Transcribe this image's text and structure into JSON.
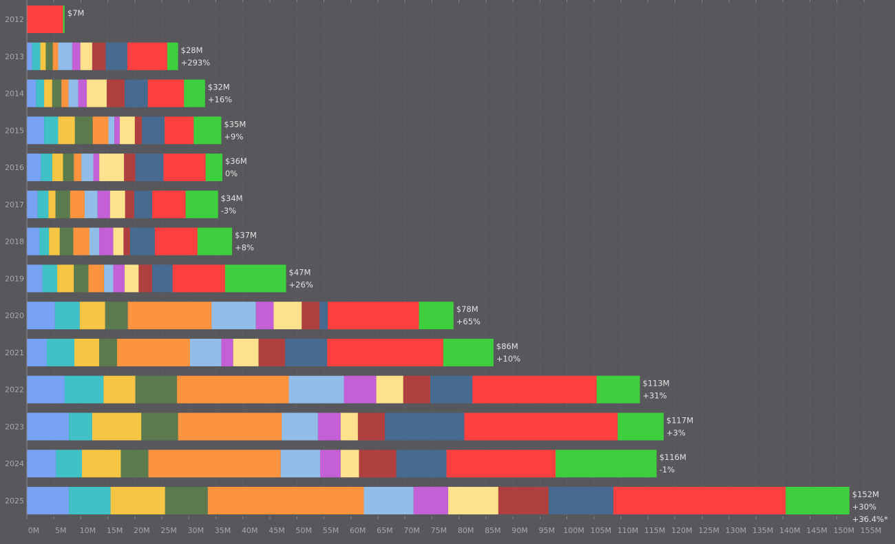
{
  "chart_data": {
    "type": "bar",
    "orientation": "horizontal",
    "stacked": true,
    "grid": true,
    "background": "#58585c",
    "xlim": [
      0,
      155
    ],
    "x_ticks": [
      "0M",
      "5M",
      "10M",
      "15M",
      "20M",
      "25M",
      "30M",
      "35M",
      "40M",
      "45M",
      "50M",
      "55M",
      "60M",
      "65M",
      "70M",
      "75M",
      "80M",
      "85M",
      "90M",
      "95M",
      "100M",
      "105M",
      "110M",
      "115M",
      "120M",
      "125M",
      "130M",
      "135M",
      "140M",
      "145M",
      "150M",
      "155M"
    ],
    "segment_colors": [
      "#78a3f5",
      "#3fc1c6",
      "#f6c544",
      "#5b7b4e",
      "#fc943f",
      "#92bde8",
      "#c460d6",
      "#fde18c",
      "#b04040",
      "#466a90",
      "#fc4040",
      "#3ecf3e"
    ],
    "categories": [
      "2012",
      "2013",
      "2014",
      "2015",
      "2016",
      "2017",
      "2018",
      "2019",
      "2020",
      "2021",
      "2022",
      "2023",
      "2024",
      "2025"
    ],
    "rows": [
      {
        "year": "2012",
        "segments": [
          0,
          0,
          0,
          0,
          0,
          0,
          0,
          0,
          0,
          0,
          6.7,
          0.3
        ],
        "total_label": "$7M",
        "change_label": ""
      },
      {
        "year": "2013",
        "segments": [
          1,
          1.5,
          1,
          1.3,
          1,
          2.6,
          1.5,
          2.2,
          2.5,
          4,
          7.4,
          2
        ],
        "total_label": "$28M",
        "change_label": "+293%"
      },
      {
        "year": "2014",
        "segments": [
          1.7,
          1.5,
          1.5,
          1.7,
          1.3,
          1.8,
          1.6,
          3.7,
          3.3,
          4.3,
          6.7,
          3.9
        ],
        "total_label": "$32M",
        "change_label": "+16%"
      },
      {
        "year": "2015",
        "segments": [
          3.2,
          2.6,
          3.1,
          3.3,
          2.9,
          1.1,
          1,
          2.8,
          1.3,
          4.2,
          5.4,
          5.1
        ],
        "total_label": "$35M",
        "change_label": "+9%"
      },
      {
        "year": "2016",
        "segments": [
          2.6,
          2.1,
          2,
          2,
          1.4,
          2.2,
          1.1,
          4.6,
          2.1,
          5.2,
          7.8,
          3.1
        ],
        "total_label": "$36M",
        "change_label": "0%"
      },
      {
        "year": "2017",
        "segments": [
          2,
          2,
          1.3,
          2.7,
          2.7,
          2.4,
          2.3,
          2.8,
          1.7,
          3.3,
          6.2,
          6
        ],
        "total_label": "$34M",
        "change_label": "-3%"
      },
      {
        "year": "2018",
        "segments": [
          2.3,
          1.8,
          2,
          2.5,
          3,
          1.8,
          2.6,
          1.9,
          1.2,
          4.6,
          7.9,
          6.4
        ],
        "total_label": "$37M",
        "change_label": "+8%"
      },
      {
        "year": "2019",
        "segments": [
          2.9,
          2.7,
          3.1,
          2.7,
          2.9,
          1.7,
          2.1,
          2.6,
          2.5,
          3.8,
          9.7,
          11.3
        ],
        "total_label": "$47M",
        "change_label": "+26%"
      },
      {
        "year": "2020",
        "segments": [
          5.2,
          4.6,
          4.7,
          4.2,
          15.5,
          8.2,
          3.3,
          5.2,
          3.3,
          1.5,
          16.9,
          6.4
        ],
        "total_label": "$78M",
        "change_label": "+65%"
      },
      {
        "year": "2021",
        "segments": [
          3.7,
          5.1,
          4.6,
          3.3,
          13.5,
          5.8,
          2.2,
          4.7,
          4.9,
          7.8,
          21.5,
          9.3
        ],
        "total_label": "$86M",
        "change_label": "+10%"
      },
      {
        "year": "2022",
        "segments": [
          7,
          7.2,
          5.9,
          7.7,
          20.7,
          10.2,
          6,
          5,
          5,
          7.8,
          23,
          8
        ],
        "total_label": "$113M",
        "change_label": "+31%"
      },
      {
        "year": "2023",
        "segments": [
          7.8,
          4.3,
          9.1,
          6.8,
          19.2,
          6.7,
          4.2,
          3.2,
          5,
          14.7,
          28.4,
          8.5
        ],
        "total_label": "$117M",
        "change_label": "+3%"
      },
      {
        "year": "2024",
        "segments": [
          5.4,
          4.8,
          7.2,
          5.1,
          24.5,
          7.3,
          3.8,
          3.4,
          6.9,
          9.3,
          20.2,
          18.7
        ],
        "total_label": "$116M",
        "change_label": "-1%"
      },
      {
        "year": "2025",
        "segments": [
          7.8,
          7.7,
          10.1,
          7.9,
          28.9,
          9.2,
          6.4,
          9.3,
          9.3,
          12,
          31.9,
          11.8
        ],
        "total_label": "$152M",
        "change_label": "+30%",
        "extra_label": "+36.4%*"
      }
    ]
  }
}
